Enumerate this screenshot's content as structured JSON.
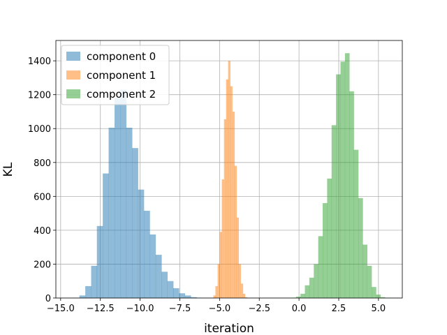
{
  "chart_data": {
    "type": "histogram",
    "title": "",
    "xlabel": "iteration",
    "ylabel": "KL",
    "xlim": [
      -15.3,
      6.5
    ],
    "ylim": [
      0,
      1520
    ],
    "grid": true,
    "legend_placement": "upper-left",
    "x_ticks": [
      -15.0,
      -12.5,
      -10.0,
      -7.5,
      -5.0,
      -2.5,
      0.0,
      2.5,
      5.0
    ],
    "x_tick_labels": [
      "−15.0",
      "−12.5",
      "−10.0",
      "−7.5",
      "−5.0",
      "−2.5",
      "0.0",
      "2.5",
      "5.0"
    ],
    "y_ticks": [
      0,
      200,
      400,
      600,
      800,
      1000,
      1200,
      1400
    ],
    "y_tick_labels": [
      "0",
      "200",
      "400",
      "600",
      "800",
      "1000",
      "1200",
      "1400"
    ],
    "series": [
      {
        "name": "component 0",
        "color": "#1f77b4",
        "opacity": 0.5,
        "bin_width": 0.3688,
        "bins": [
          [
            -14.56,
            1
          ],
          [
            -14.19,
            2
          ],
          [
            -13.82,
            15
          ],
          [
            -13.45,
            70
          ],
          [
            -13.08,
            190
          ],
          [
            -12.72,
            425
          ],
          [
            -12.35,
            735
          ],
          [
            -11.98,
            1005
          ],
          [
            -11.61,
            1180
          ],
          [
            -11.24,
            1230
          ],
          [
            -10.87,
            1005
          ],
          [
            -10.5,
            885
          ],
          [
            -10.13,
            640
          ],
          [
            -9.76,
            515
          ],
          [
            -9.39,
            375
          ],
          [
            -9.02,
            255
          ],
          [
            -8.65,
            155
          ],
          [
            -8.28,
            100
          ],
          [
            -7.92,
            58
          ],
          [
            -7.55,
            28
          ],
          [
            -7.18,
            15
          ],
          [
            -6.81,
            5
          ],
          [
            -6.44,
            2
          ]
        ]
      },
      {
        "name": "component 1",
        "color": "#ff7f0e",
        "opacity": 0.5,
        "bin_width": 0.1327,
        "bins": [
          [
            -5.52,
            2
          ],
          [
            -5.39,
            15
          ],
          [
            -5.26,
            70
          ],
          [
            -5.12,
            200
          ],
          [
            -4.99,
            390
          ],
          [
            -4.86,
            700
          ],
          [
            -4.72,
            1055
          ],
          [
            -4.59,
            1290
          ],
          [
            -4.46,
            1400
          ],
          [
            -4.33,
            1250
          ],
          [
            -4.19,
            1100
          ],
          [
            -4.06,
            780
          ],
          [
            -3.93,
            475
          ],
          [
            -3.8,
            200
          ],
          [
            -3.66,
            85
          ],
          [
            -3.53,
            25
          ],
          [
            -3.4,
            5
          ],
          [
            -3.27,
            2
          ],
          [
            -3.13,
            1
          ]
        ]
      },
      {
        "name": "component 2",
        "color": "#2ca02c",
        "opacity": 0.5,
        "bin_width": 0.2796,
        "bins": [
          [
            -0.47,
            2
          ],
          [
            -0.19,
            8
          ],
          [
            0.09,
            25
          ],
          [
            0.37,
            75
          ],
          [
            0.65,
            120
          ],
          [
            0.93,
            200
          ],
          [
            1.21,
            365
          ],
          [
            1.49,
            560
          ],
          [
            1.77,
            705
          ],
          [
            2.05,
            1020
          ],
          [
            2.33,
            1320
          ],
          [
            2.61,
            1395
          ],
          [
            2.89,
            1445
          ],
          [
            3.17,
            1220
          ],
          [
            3.45,
            875
          ],
          [
            3.73,
            590
          ],
          [
            4.01,
            315
          ],
          [
            4.29,
            190
          ],
          [
            4.57,
            65
          ],
          [
            4.85,
            20
          ],
          [
            5.13,
            5
          ]
        ]
      }
    ]
  }
}
